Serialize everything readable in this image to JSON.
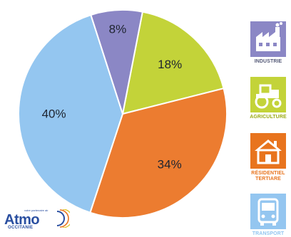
{
  "chart_data": {
    "type": "pie",
    "categories": [
      "INDUSTRIE",
      "AGRICULTURE",
      "RÉSIDENTIEL TERTIAIRE",
      "TRANSPORT"
    ],
    "values": [
      18,
      34,
      40,
      8
    ],
    "labels": [
      "18%",
      "34%",
      "40%",
      "8%"
    ],
    "colors": [
      "#c3d339",
      "#ec7c30",
      "#94c6f0",
      "#8b87c5"
    ],
    "start_angle_deg": 11
  },
  "legend": {
    "items": [
      {
        "label": "INDUSTRIE",
        "label2": "",
        "icon": "factory-icon",
        "color": "#8b87c5",
        "text_color": "#555a78"
      },
      {
        "label": "AGRICULTURE",
        "label2": "",
        "icon": "tractor-icon",
        "color": "#c3d339",
        "text_color": "#9aaa12"
      },
      {
        "label": "RÉSIDENTIEL",
        "label2": "TERTIARE",
        "icon": "house-icon",
        "color": "#e8741e",
        "text_color": "#e8741e"
      },
      {
        "label": "TRANSPORT",
        "label2": "",
        "icon": "bus-icon",
        "color": "#94c6f0",
        "text_color": "#94c6f0"
      }
    ]
  },
  "logo": {
    "name": "Atmo",
    "tagline": "votre partenaire air",
    "region": "OCCITANIE"
  }
}
